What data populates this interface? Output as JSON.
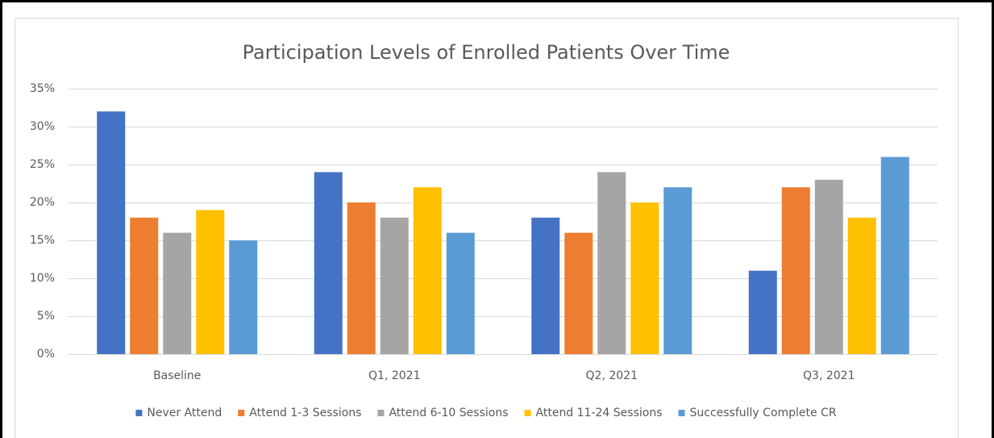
{
  "chart_data": {
    "type": "bar",
    "title": "Participation Levels of Enrolled Patients Over Time",
    "categories": [
      "Baseline",
      "Q1, 2021",
      "Q2, 2021",
      "Q3, 2021"
    ],
    "series": [
      {
        "name": "Never Attend",
        "color": "#4472c4",
        "values": [
          32,
          24,
          18,
          11
        ]
      },
      {
        "name": "Attend 1-3 Sessions",
        "color": "#ed7d31",
        "values": [
          18,
          20,
          16,
          22
        ]
      },
      {
        "name": "Attend 6-10 Sessions",
        "color": "#a5a5a5",
        "values": [
          16,
          18,
          24,
          23
        ]
      },
      {
        "name": "Attend 11-24 Sessions",
        "color": "#ffc000",
        "values": [
          19,
          22,
          20,
          18
        ]
      },
      {
        "name": "Successfully Complete CR",
        "color": "#5b9bd5",
        "values": [
          15,
          16,
          22,
          26
        ]
      }
    ],
    "ylim": [
      0,
      35
    ],
    "yticks": [
      {
        "value": 0,
        "label": "0%"
      },
      {
        "value": 5,
        "label": "5%"
      },
      {
        "value": 10,
        "label": "10%"
      },
      {
        "value": 15,
        "label": "15%"
      },
      {
        "value": 20,
        "label": "20%"
      },
      {
        "value": 25,
        "label": "25%"
      },
      {
        "value": 30,
        "label": "30%"
      },
      {
        "value": 35,
        "label": "35%"
      }
    ],
    "grid": true,
    "legend": "bottom"
  }
}
